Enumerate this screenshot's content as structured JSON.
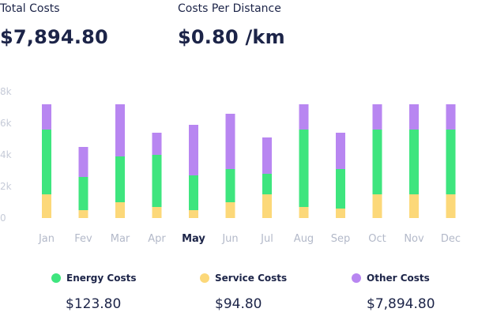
{
  "kpis": {
    "total_costs": {
      "label": "Total Costs",
      "value": "$7,894.80"
    },
    "costs_per_distance": {
      "label": "Costs Per Distance",
      "value": "$0.80 /km"
    }
  },
  "legend": [
    {
      "label": "Energy Costs",
      "value": "$123.80",
      "color": "#3ee57e"
    },
    {
      "label": "Service Costs",
      "value": "$94.80",
      "color": "#fcd879"
    },
    {
      "label": "Other Costs",
      "value": "$7,894.80",
      "color": "#b886f1"
    }
  ],
  "chart_data": {
    "type": "bar",
    "stacked": true,
    "categories": [
      "Jan",
      "Fev",
      "Mar",
      "Apr",
      "May",
      "Jun",
      "Jul",
      "Aug",
      "Sep",
      "Oct",
      "Nov",
      "Dec"
    ],
    "highlighted_category": "May",
    "y_ticks": [
      "0",
      "2k",
      "4k",
      "6k",
      "8k"
    ],
    "ylim": [
      0,
      8000
    ],
    "series": [
      {
        "name": "Service Costs",
        "color": "#fcd879",
        "values": [
          1500,
          500,
          1000,
          700,
          500,
          1000,
          1500,
          700,
          600,
          1500,
          1500,
          1500
        ]
      },
      {
        "name": "Energy Costs",
        "color": "#3ee57e",
        "values": [
          4100,
          2100,
          2900,
          3300,
          2200,
          2100,
          1300,
          4900,
          2500,
          4100,
          4100,
          4100
        ]
      },
      {
        "name": "Other Costs",
        "color": "#b886f1",
        "values": [
          1600,
          1900,
          3300,
          1400,
          3200,
          3500,
          2300,
          1600,
          2300,
          1600,
          1600,
          1600
        ]
      }
    ],
    "grid": false,
    "legend_position": "bottom"
  }
}
